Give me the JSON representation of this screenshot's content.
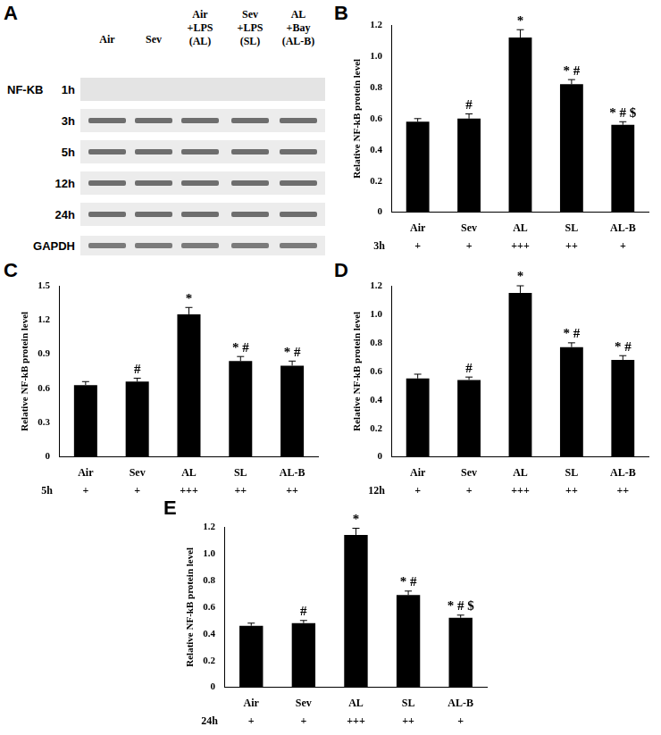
{
  "blot": {
    "panel": "A",
    "lanes": [
      [
        "Air"
      ],
      [
        "Sev"
      ],
      [
        "Air",
        "+LPS",
        "(AL)"
      ],
      [
        "Sev",
        "+LPS",
        "(SL)"
      ],
      [
        "AL",
        "+Bay",
        "(AL-B)"
      ]
    ],
    "target": "NF-KB",
    "rows": [
      "1h",
      "3h",
      "5h",
      "12h",
      "24h"
    ],
    "control": "GAPDH"
  },
  "chart_data": [
    {
      "type": "bar",
      "title": "B",
      "ylabel": "Relative NF-kB protein level",
      "categories": [
        "Air",
        "Sev",
        "AL",
        "SL",
        "AL-B"
      ],
      "values": [
        0.58,
        0.6,
        1.12,
        0.82,
        0.56
      ],
      "errors": [
        0.02,
        0.03,
        0.05,
        0.03,
        0.02
      ],
      "xlabel": "3h",
      "grade_labels": [
        "+",
        "+",
        "+++",
        "++",
        "+"
      ],
      "annotations": [
        null,
        "#",
        "*",
        "* #",
        "* # $"
      ],
      "color": "#000000",
      "ylim": [
        0,
        1.2
      ],
      "yticks": [
        0,
        0.2,
        0.4,
        0.6,
        0.8,
        {
          "value": 1,
          "label": "1.0"
        },
        1.2
      ],
      "grid": false
    },
    {
      "type": "bar",
      "title": "C",
      "ylabel": "Relative NF-kB protein level",
      "categories": [
        "Air",
        "Sev",
        "AL",
        "SL",
        "AL-B"
      ],
      "values": [
        0.63,
        0.66,
        1.25,
        0.84,
        0.8
      ],
      "errors": [
        0.03,
        0.03,
        0.06,
        0.04,
        0.04
      ],
      "xlabel": "5h",
      "grade_labels": [
        "+",
        "+",
        "+++",
        "++",
        "++"
      ],
      "annotations": [
        null,
        "#",
        "*",
        "* #",
        "* #"
      ],
      "color": "#000000",
      "ylim": [
        0,
        1.5
      ],
      "yticks": [
        0,
        0.3,
        0.6,
        0.9,
        1.2,
        1.5
      ],
      "grid": false
    },
    {
      "type": "bar",
      "title": "D",
      "ylabel": "Relative NF-kB protein level",
      "categories": [
        "Air",
        "Sev",
        "AL",
        "SL",
        "AL-B"
      ],
      "values": [
        0.55,
        0.54,
        1.15,
        0.77,
        0.68
      ],
      "errors": [
        0.03,
        0.02,
        0.05,
        0.03,
        0.03
      ],
      "xlabel": "12h",
      "grade_labels": [
        "+",
        "+",
        "+++",
        "++",
        "++"
      ],
      "annotations": [
        null,
        "#",
        "*",
        "* #",
        "* #"
      ],
      "color": "#000000",
      "ylim": [
        0,
        1.2
      ],
      "yticks": [
        0,
        0.2,
        0.4,
        0.6,
        0.8,
        {
          "value": 1,
          "label": "1.0"
        },
        1.2
      ],
      "grid": false
    },
    {
      "type": "bar",
      "title": "E",
      "ylabel": "Relative NF-kB protein level",
      "categories": [
        "Air",
        "Sev",
        "AL",
        "SL",
        "AL-B"
      ],
      "values": [
        0.46,
        0.48,
        1.14,
        0.69,
        0.52
      ],
      "errors": [
        0.02,
        0.02,
        0.05,
        0.03,
        0.02
      ],
      "xlabel": "24h",
      "grade_labels": [
        "+",
        "+",
        "+++",
        "++",
        "+"
      ],
      "annotations": [
        null,
        "#",
        "*",
        "* #",
        "* # $"
      ],
      "color": "#000000",
      "ylim": [
        0,
        1.2
      ],
      "yticks": [
        0,
        0.2,
        0.4,
        0.6,
        0.8,
        {
          "value": 1,
          "label": "1.0"
        },
        1.2
      ],
      "grid": false
    }
  ]
}
